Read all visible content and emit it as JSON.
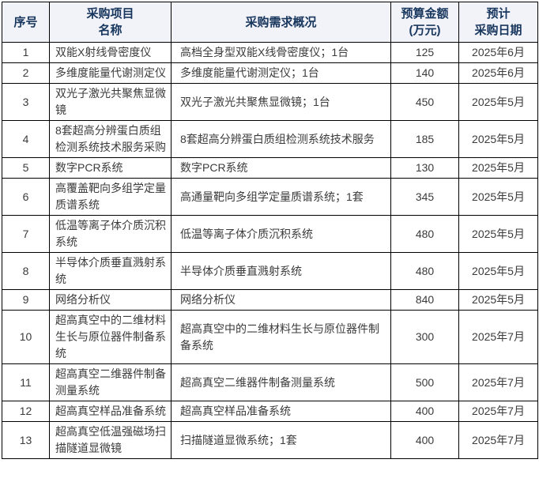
{
  "colors": {
    "page_bg": "#FFFFFF",
    "header_bg": "#F2F2F9",
    "header_text": "#17365D",
    "body_text": "#3B3B3B",
    "border": "#000000"
  },
  "table": {
    "headers": {
      "no": [
        "序号"
      ],
      "name": [
        "采购项目",
        "名称"
      ],
      "desc": [
        "采购需求概况"
      ],
      "budget": [
        "预算金额",
        "(万元)"
      ],
      "date": [
        "预计",
        "采购日期"
      ]
    },
    "rows": [
      {
        "no": "1",
        "name": "双能X射线骨密度仪",
        "desc": "高档全身型双能X线骨密度仪；1台",
        "budget": "125",
        "date": "2025年6月"
      },
      {
        "no": "2",
        "name": "多维度能量代谢测定仪",
        "desc": "多维度能量代谢测定仪；1台",
        "budget": "140",
        "date": "2025年6月"
      },
      {
        "no": "3",
        "name": "双光子激光共聚焦显微镜",
        "desc": "双光子激光共聚焦显微镜；1台",
        "budget": "450",
        "date": "2025年5月"
      },
      {
        "no": "4",
        "name": "8套超高分辨蛋白质组检测系统技术服务采购",
        "desc": "8套超高分辨蛋白质组检测系统技术服务",
        "budget": "185",
        "date": "2025年5月"
      },
      {
        "no": "5",
        "name": "数字PCR系统",
        "desc": "数字PCR系统",
        "budget": "130",
        "date": "2025年5月"
      },
      {
        "no": "6",
        "name": "高覆盖靶向多组学定量质谱系统",
        "desc": "高通量靶向多组学定量质谱系统；1套",
        "budget": "345",
        "date": "2025年5月"
      },
      {
        "no": "7",
        "name": "低温等离子体介质沉积系统",
        "desc": "低温等离子体介质沉积系统",
        "budget": "480",
        "date": "2025年5月"
      },
      {
        "no": "8",
        "name": "半导体介质垂直溅射系统",
        "desc": "半导体介质垂直溅射系统",
        "budget": "480",
        "date": "2025年5月"
      },
      {
        "no": "9",
        "name": "网络分析仪",
        "desc": "网络分析仪",
        "budget": "840",
        "date": "2025年5月"
      },
      {
        "no": "10",
        "name": "超高真空中的二维材料生长与原位器件制备系统",
        "desc": "超高真空中的二维材料生长与原位器件制备系统",
        "budget": "300",
        "date": "2025年7月"
      },
      {
        "no": "11",
        "name": "超高真空二维器件制备测量系统",
        "desc": "超高真空二维器件制备测量系统",
        "budget": "500",
        "date": "2025年7月"
      },
      {
        "no": "12",
        "name": "超高真空样品准备系统",
        "desc": "超高真空样品准备系统",
        "budget": "400",
        "date": "2025年7月"
      },
      {
        "no": "13",
        "name": "超高真空低温强磁场扫描隧道显微镜",
        "desc": "扫描隧道显微系统；1套",
        "budget": "400",
        "date": "2025年7月"
      }
    ]
  }
}
